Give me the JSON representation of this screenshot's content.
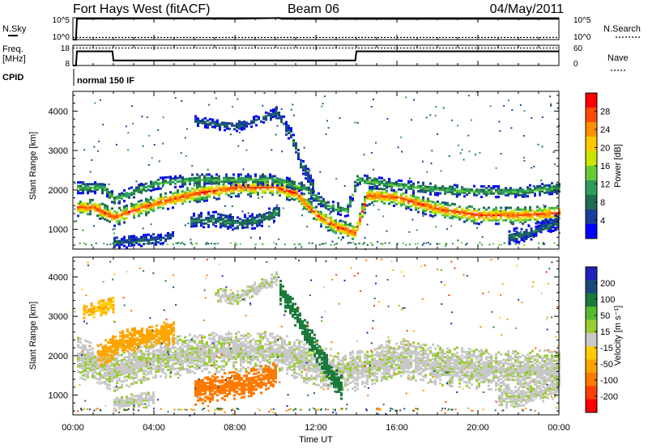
{
  "header": {
    "radar": "Fort Hays West (fitACF)",
    "beam": "Beam 06",
    "date": "04/May/2011"
  },
  "noise_panel": {
    "left_label": "N.Sky",
    "right_label": "N.Search",
    "left_ticks": [
      "10^5",
      "10^0"
    ],
    "right_ticks": [
      "10^5",
      "10^0"
    ]
  },
  "freq_panel": {
    "left_label_1": "Freq.",
    "left_label_2": "[MHz]",
    "right_label": "Nave",
    "left_ticks": [
      "18",
      "8"
    ],
    "right_ticks": [
      "60",
      "0"
    ]
  },
  "cpid": {
    "label": "CPID",
    "mode": "normal 150 IF"
  },
  "power_scale": {
    "label": "Power [dB]",
    "ticks": [
      "28",
      "24",
      "20",
      "16",
      "12",
      "8",
      "4"
    ],
    "colors": [
      "#ff0000",
      "#ff4a00",
      "#ff9000",
      "#ffc800",
      "#c8e600",
      "#66cc33",
      "#2e9e5a",
      "#1f6e4e",
      "#1a3f9a",
      "#0000ff"
    ]
  },
  "velocity_scale": {
    "label": "Velocity [m s⁻¹]",
    "ticks": [
      "200",
      "100",
      "50",
      "15",
      "-15",
      "-50",
      "-100",
      "-200"
    ],
    "colors": [
      "#2222bb",
      "#1a4a7a",
      "#1a7a3a",
      "#55bb33",
      "#9acd32",
      "#c8c8c8",
      "#ffcc00",
      "#ffa500",
      "#ff7a00",
      "#ff4000",
      "#ff0000"
    ]
  },
  "x_axis": {
    "label": "Time UT",
    "tick_labels": [
      "00:00",
      "04:00",
      "08:00",
      "12:00",
      "16:00",
      "20:00",
      "00:00"
    ]
  },
  "chart_data": [
    {
      "type": "line",
      "title": "N.Sky / N.Search",
      "x_unit": "hours UT",
      "xlim": [
        0,
        24
      ],
      "series": [
        {
          "name": "N.Sky",
          "x": [
            0,
            0.15,
            0.2,
            4,
            8,
            10.2,
            10.3,
            12,
            16,
            20,
            24
          ],
          "y": [
            1,
            1,
            60000,
            70000,
            60000,
            90000,
            60000,
            55000,
            55000,
            60000,
            60000
          ]
        },
        {
          "name": "N.Search",
          "x": [
            0,
            24
          ],
          "y": [
            3,
            3
          ]
        }
      ],
      "ylim": [
        1,
        100000
      ],
      "log_scale": true
    },
    {
      "type": "line",
      "title": "Freq / Nave",
      "x_unit": "hours UT",
      "xlim": [
        0,
        24
      ],
      "series": [
        {
          "name": "Freq. [MHz]",
          "x": [
            0,
            0.15,
            0.2,
            1.95,
            2.0,
            13.95,
            14.0,
            24
          ],
          "y": [
            8,
            8,
            15,
            15,
            10.5,
            10.5,
            15,
            15
          ]
        },
        {
          "name": "Nave",
          "x": [
            0,
            24
          ],
          "y": [
            52,
            52
          ]
        }
      ],
      "ylim_left": [
        8,
        18
      ],
      "ylim_right": [
        0,
        60
      ]
    },
    {
      "type": "heatmap",
      "title": "Power [dB]",
      "xlabel": "Time UT",
      "ylabel": "Slant Range [km]",
      "xlim": [
        0,
        24
      ],
      "ylim": [
        500,
        4500
      ],
      "y_ticks": [
        1000,
        2000,
        3000,
        4000
      ],
      "clim": [
        0,
        30
      ],
      "bands": [
        {
          "x": [
            0.2,
            1.0,
            2.0,
            4.0,
            6.0,
            8.0,
            10.0,
            11.0,
            12.0,
            13.0,
            13.9,
            14.5,
            16.0,
            18.0,
            20.0,
            22.0,
            24.0
          ],
          "y": [
            1550,
            1550,
            1300,
            1650,
            1900,
            2050,
            2050,
            1900,
            1350,
            1050,
            900,
            1850,
            1800,
            1500,
            1350,
            1350,
            1400
          ],
          "width": 220,
          "peak": 26
        },
        {
          "x": [
            0.2,
            1.5,
            2.0,
            4.0,
            6.0,
            8.0,
            10.0,
            11.5,
            12.5,
            13.5,
            14.0,
            16.0,
            18.0,
            20.0,
            22.0,
            24.0
          ],
          "y": [
            2050,
            2050,
            1750,
            2150,
            2250,
            2250,
            2250,
            2000,
            1600,
            1450,
            2250,
            2100,
            2000,
            1950,
            1950,
            2050
          ],
          "width": 140,
          "peak": 12
        },
        {
          "x": [
            6.0,
            7.0,
            8.0,
            9.0,
            10.0
          ],
          "y": [
            3750,
            3650,
            3600,
            3750,
            3950
          ],
          "width": 120,
          "peak": 7
        },
        {
          "x": [
            10.0,
            10.7,
            11.2,
            11.8
          ],
          "y": [
            3950,
            3400,
            2700,
            2100
          ],
          "width": 180,
          "peak": 7
        },
        {
          "x": [
            5.8,
            7.0,
            8.0,
            9.0,
            10.2
          ],
          "y": [
            1200,
            1250,
            1150,
            1200,
            1450
          ],
          "width": 180,
          "peak": 9
        },
        {
          "x": [
            2.0,
            3.0,
            4.0,
            5.0
          ],
          "y": [
            650,
            700,
            750,
            850
          ],
          "width": 150,
          "peak": 6
        },
        {
          "x": [
            21.5,
            22.5,
            23.5,
            24.0
          ],
          "y": [
            800,
            900,
            1100,
            1200
          ],
          "width": 180,
          "peak": 7
        }
      ]
    },
    {
      "type": "heatmap",
      "title": "Velocity",
      "xlabel": "Time UT",
      "ylabel": "Slant Range [km]",
      "xlim": [
        0,
        24
      ],
      "ylim": [
        500,
        4500
      ],
      "y_ticks": [
        1000,
        2000,
        3000,
        4000
      ],
      "clim": [
        -200,
        200
      ],
      "regions": [
        {
          "x": [
            0.2,
            2.0,
            4.0,
            6.0,
            8.0,
            10.0,
            12.0,
            14.0,
            16.0,
            18.0,
            20.0,
            22.0,
            24.0
          ],
          "y": [
            1950,
            1600,
            1900,
            2050,
            2100,
            2100,
            1700,
            1600,
            1950,
            1750,
            1650,
            1600,
            1650
          ],
          "width": 500,
          "velocity": 0
        },
        {
          "x": [
            1.2,
            2.5,
            4.0,
            5.0
          ],
          "y": [
            2000,
            2350,
            2500,
            2600
          ],
          "width": 300,
          "velocity": -45
        },
        {
          "x": [
            6.0,
            7.0,
            8.0,
            9.0,
            10.0
          ],
          "y": [
            1100,
            1200,
            1250,
            1350,
            1550
          ],
          "width": 350,
          "velocity": -90
        },
        {
          "x": [
            10.2,
            11.0,
            11.8,
            12.5,
            13.2
          ],
          "y": [
            3600,
            3000,
            2300,
            1700,
            1200
          ],
          "width": 300,
          "velocity": 40
        },
        {
          "x": [
            7.0,
            8.0,
            9.0,
            10.0
          ],
          "y": [
            3550,
            3450,
            3700,
            3950
          ],
          "width": 160,
          "velocity": 0
        },
        {
          "x": [
            0.5,
            1.2,
            2.0
          ],
          "y": [
            3100,
            3200,
            3300
          ],
          "width": 200,
          "velocity": -30
        },
        {
          "x": [
            2.0,
            3.0,
            4.0
          ],
          "y": [
            800,
            850,
            900
          ],
          "width": 200,
          "velocity": 0
        },
        {
          "x": [
            21.0,
            22.5,
            24.0
          ],
          "y": [
            900,
            1000,
            1200
          ],
          "width": 250,
          "velocity": 0
        }
      ]
    }
  ]
}
